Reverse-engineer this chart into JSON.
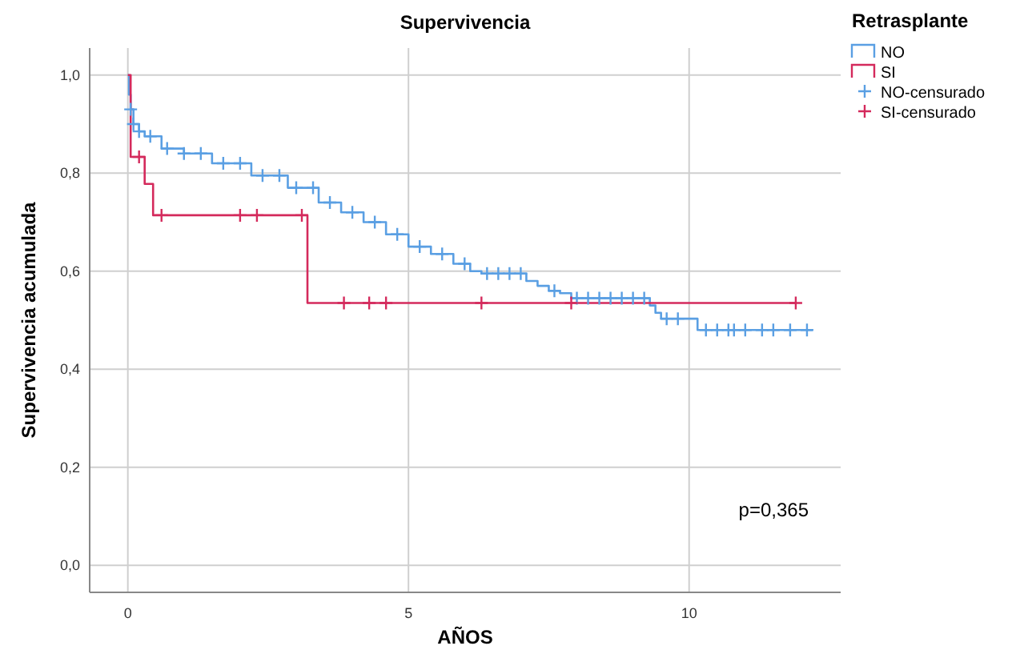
{
  "chart_data": {
    "type": "step",
    "title": "Supervivencia",
    "xlabel": "AÑOS",
    "ylabel": "Supervivencia acumulada",
    "legend_title": "Retrasplante",
    "xlim": [
      -0.68,
      12.7
    ],
    "ylim": [
      -0.055,
      1.055
    ],
    "xticks": [
      0,
      5,
      10
    ],
    "yticks": [
      {
        "value": 0,
        "label": "0,0"
      },
      {
        "value": 0.2,
        "label": "0,2"
      },
      {
        "value": 0.4,
        "label": "0,4"
      },
      {
        "value": 0.6,
        "label": "0,6"
      },
      {
        "value": 0.8,
        "label": "0,8"
      },
      {
        "value": 1,
        "label": "1,0"
      }
    ],
    "grid": true,
    "legend": "top right",
    "annotations": [
      "p=0,365"
    ],
    "series": [
      {
        "name": "NO",
        "color": "#5a9fe3",
        "x": [
          0,
          0.02,
          0.05,
          0.1,
          0.2,
          0.3,
          0.6,
          1.0,
          1.5,
          2.2,
          2.85,
          3.4,
          3.8,
          4.2,
          4.6,
          5.0,
          5.4,
          5.8,
          6.1,
          6.3,
          7.1,
          7.3,
          7.5,
          7.7,
          7.9,
          9.3,
          9.4,
          9.5,
          10.15,
          12.2
        ],
        "values": [
          1.0,
          0.96,
          0.93,
          0.9,
          0.885,
          0.875,
          0.85,
          0.84,
          0.82,
          0.795,
          0.77,
          0.74,
          0.72,
          0.7,
          0.675,
          0.65,
          0.635,
          0.615,
          0.6,
          0.595,
          0.58,
          0.57,
          0.56,
          0.555,
          0.545,
          0.53,
          0.515,
          0.503,
          0.48,
          0.48
        ]
      },
      {
        "name": "SI",
        "color": "#d42a5c",
        "x": [
          0,
          0.05,
          0.3,
          0.45,
          3.2,
          11.9
        ],
        "values": [
          1.0,
          0.833,
          0.778,
          0.714,
          0.535,
          0.535
        ]
      },
      {
        "name": "NO-censurado",
        "type": "scatter",
        "marker": "cross",
        "color": "#5a9fe3",
        "x": [
          0.05,
          0.1,
          0.2,
          0.4,
          0.7,
          1.0,
          1.3,
          1.7,
          2.0,
          2.4,
          2.7,
          3.0,
          3.3,
          3.6,
          4.0,
          4.4,
          4.8,
          5.2,
          5.6,
          6.0,
          6.4,
          6.6,
          6.8,
          7.0,
          7.6,
          8.0,
          8.2,
          8.4,
          8.6,
          8.8,
          9.0,
          9.2,
          9.6,
          9.8,
          10.3,
          10.5,
          10.7,
          10.8,
          11.0,
          11.3,
          11.5,
          11.8,
          12.1
        ],
        "values": [
          0.93,
          0.9,
          0.885,
          0.875,
          0.85,
          0.84,
          0.84,
          0.82,
          0.82,
          0.795,
          0.795,
          0.77,
          0.77,
          0.74,
          0.72,
          0.7,
          0.675,
          0.65,
          0.635,
          0.615,
          0.595,
          0.595,
          0.595,
          0.595,
          0.56,
          0.545,
          0.545,
          0.545,
          0.545,
          0.545,
          0.545,
          0.545,
          0.503,
          0.503,
          0.48,
          0.48,
          0.48,
          0.48,
          0.48,
          0.48,
          0.48,
          0.48,
          0.48
        ]
      },
      {
        "name": "SI-censurado",
        "type": "scatter",
        "marker": "cross",
        "color": "#d42a5c",
        "x": [
          0.2,
          0.6,
          2.0,
          2.3,
          3.1,
          3.85,
          4.3,
          4.6,
          6.3,
          7.9,
          11.9
        ],
        "values": [
          0.833,
          0.714,
          0.714,
          0.714,
          0.714,
          0.535,
          0.535,
          0.535,
          0.535,
          0.535,
          0.535
        ]
      }
    ]
  }
}
